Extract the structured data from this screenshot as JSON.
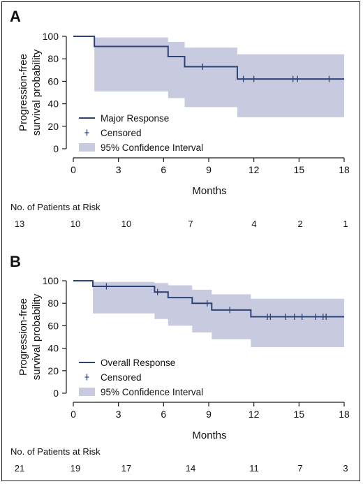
{
  "colors": {
    "line": "#2c4378",
    "band": "#c8cbe0",
    "axis": "#1b1b1b",
    "text": "#111111"
  },
  "chart_data": [
    {
      "panel": "A",
      "type": "line",
      "xlabel": "Months",
      "ylabel": [
        "Progression-free",
        "survival probability"
      ],
      "xlim": [
        0,
        18
      ],
      "ylim": [
        0,
        100
      ],
      "xticks": [
        0,
        3,
        6,
        9,
        12,
        15,
        18
      ],
      "yticks": [
        0,
        20,
        40,
        60,
        80,
        100
      ],
      "legend_position": "lower-left",
      "legend": [
        "Major Response",
        "Censored",
        "95% Confidence Interval"
      ],
      "step_x": [
        0,
        1.4,
        6.3,
        7.4,
        10.9,
        18
      ],
      "step_y": [
        100,
        91,
        82,
        73,
        62,
        62
      ],
      "ci_lower": [
        100,
        51,
        45,
        37,
        28,
        28
      ],
      "ci_upper": [
        100,
        99,
        95,
        90,
        84,
        84
      ],
      "censored": [
        {
          "x": 8.6,
          "y": 73
        },
        {
          "x": 11.3,
          "y": 62
        },
        {
          "x": 12.0,
          "y": 62
        },
        {
          "x": 14.6,
          "y": 62
        },
        {
          "x": 14.9,
          "y": 62
        },
        {
          "x": 17.0,
          "y": 62
        }
      ],
      "risk_title": "No. of Patients at Risk",
      "risk_x": [
        0,
        3,
        6,
        9,
        12,
        15,
        18
      ],
      "risk_counts": [
        "13",
        "10",
        "10",
        "7",
        "4",
        "2",
        "1"
      ]
    },
    {
      "panel": "B",
      "type": "line",
      "xlabel": "Months",
      "ylabel": [
        "Progression-free",
        "survival probability"
      ],
      "xlim": [
        0,
        18
      ],
      "ylim": [
        0,
        100
      ],
      "xticks": [
        0,
        3,
        6,
        9,
        12,
        15,
        18
      ],
      "yticks": [
        0,
        20,
        40,
        60,
        80,
        100
      ],
      "legend_position": "lower-left",
      "legend": [
        "Overall Response",
        "Censored",
        "95% Confidence Interval"
      ],
      "step_x": [
        0,
        1.3,
        5.4,
        6.3,
        7.9,
        9.2,
        11.8,
        18
      ],
      "step_y": [
        100,
        95,
        90,
        85,
        80,
        74,
        68,
        68
      ],
      "ci_lower": [
        100,
        71,
        66,
        60,
        54,
        48,
        41,
        41
      ],
      "ci_upper": [
        100,
        99,
        98,
        96,
        92,
        88,
        84,
        84
      ],
      "censored": [
        {
          "x": 2.2,
          "y": 95
        },
        {
          "x": 5.6,
          "y": 90
        },
        {
          "x": 8.9,
          "y": 80
        },
        {
          "x": 10.4,
          "y": 74
        },
        {
          "x": 12.9,
          "y": 68
        },
        {
          "x": 13.1,
          "y": 68
        },
        {
          "x": 14.1,
          "y": 68
        },
        {
          "x": 14.7,
          "y": 68
        },
        {
          "x": 15.2,
          "y": 68
        },
        {
          "x": 16.1,
          "y": 68
        },
        {
          "x": 16.6,
          "y": 68
        },
        {
          "x": 16.8,
          "y": 68
        }
      ],
      "risk_title": "No. of Patients at Risk",
      "risk_x": [
        0,
        3,
        6,
        9,
        12,
        15,
        18
      ],
      "risk_counts": [
        "21",
        "19",
        "17",
        "14",
        "11",
        "7",
        "3"
      ]
    }
  ]
}
